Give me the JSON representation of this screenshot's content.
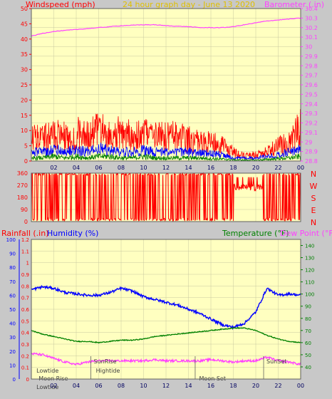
{
  "top_header": {
    "windspeed_label": "Windspeed (mph)",
    "date_title": "24 hour graph day - June 13 2020",
    "barometer_label": "Barometer (.in)"
  },
  "bottom_header": {
    "rainfall_label": "Rainfall (.in)",
    "humidity_label": "Humidity (%)",
    "temperature_label": "Temperature (°F)",
    "dewpoint_label": "Dew Point (°F)"
  },
  "colors": {
    "panel_bg": "#ffffc0",
    "frame_bg": "#c8c8c8",
    "red": "#ff0000",
    "magenta": "#ff40ff",
    "blue": "#0000ff",
    "green": "#008000",
    "gold": "#e0c000"
  },
  "time_ticks": [
    "02",
    "04",
    "06",
    "08",
    "10",
    "12",
    "14",
    "16",
    "18",
    "20",
    "22",
    "00"
  ],
  "chart_data": [
    {
      "type": "line",
      "name": "wind-barometer",
      "x": [
        0,
        1,
        2,
        3,
        4,
        5,
        6,
        7,
        8,
        9,
        10,
        11,
        12,
        13,
        14,
        15,
        16,
        17,
        18,
        19,
        20,
        21,
        22,
        23,
        24
      ],
      "series": [
        {
          "color": "#ff0000",
          "values": [
            8,
            7,
            9,
            8,
            9,
            8,
            10,
            9,
            9,
            8,
            9,
            8,
            8,
            8,
            7,
            6,
            6,
            5,
            3,
            2,
            2,
            3,
            5,
            6,
            11
          ]
        },
        {
          "color": "#0000ff",
          "values": [
            3,
            3,
            3.5,
            3,
            3.5,
            3,
            4,
            3.5,
            3,
            3,
            3.5,
            3,
            3,
            3,
            3,
            2.5,
            2.5,
            2,
            1,
            1,
            1,
            1.5,
            2,
            3,
            4
          ]
        },
        {
          "color": "#008000",
          "values": [
            1,
            1,
            1.5,
            1,
            1.5,
            1,
            1.5,
            1.5,
            1,
            1,
            1.5,
            1,
            1,
            1,
            1,
            1,
            0.8,
            0.6,
            0.4,
            0.3,
            0.3,
            0.5,
            0.8,
            1,
            1.5
          ]
        },
        {
          "color": "#ff40ff",
          "axis": "right",
          "values": [
            30.11,
            30.14,
            30.16,
            30.17,
            30.18,
            30.19,
            30.2,
            30.21,
            30.22,
            30.225,
            30.23,
            30.23,
            30.22,
            30.215,
            30.21,
            30.2,
            30.2,
            30.2,
            30.21,
            30.23,
            30.25,
            30.27,
            30.28,
            30.29,
            30.3
          ]
        }
      ],
      "left_axis": {
        "ticks": [
          0,
          5,
          10,
          15,
          20,
          25,
          30,
          35,
          40,
          45,
          50
        ],
        "ylim": [
          0,
          50
        ]
      },
      "right_axis": {
        "ticks": [
          "28.8",
          "28.9",
          "29",
          "29.1",
          "29.2",
          "29.3",
          "29.4",
          "29.5",
          "29.6",
          "29.7",
          "29.8",
          "29.9",
          "30",
          "30.1",
          "30.2",
          "30.3",
          "30.4"
        ],
        "ylim": [
          28.8,
          30.4
        ]
      },
      "xlim": [
        0,
        24
      ]
    },
    {
      "type": "line",
      "name": "wind-direction",
      "left_axis": {
        "ticks": [
          "0",
          "90",
          "180",
          "270",
          "360"
        ],
        "ylim": [
          0,
          360
        ]
      },
      "right_axis": {
        "ticks": [
          "N",
          "W",
          "S",
          "E",
          "N"
        ]
      },
      "xlim": [
        0,
        24
      ]
    },
    {
      "type": "line",
      "name": "rain-humidity-temp",
      "x": [
        0,
        1,
        2,
        3,
        4,
        5,
        6,
        7,
        8,
        9,
        10,
        11,
        12,
        13,
        14,
        15,
        16,
        17,
        18,
        19,
        20,
        21,
        22,
        23,
        24
      ],
      "series": [
        {
          "color": "#0000ff",
          "axis": "humidity",
          "values": [
            64,
            66,
            65,
            62,
            61,
            60,
            60,
            62,
            65,
            63,
            59,
            57,
            55,
            53,
            50,
            47,
            43,
            39,
            37,
            40,
            48,
            65,
            60,
            61,
            60
          ]
        },
        {
          "color": "#008000",
          "axis": "temperature",
          "values": [
            70,
            67,
            65,
            63,
            61,
            61,
            60,
            61,
            62,
            62,
            63,
            65,
            66,
            67,
            68,
            69,
            70,
            71,
            72,
            72,
            70,
            66,
            63,
            61,
            60
          ]
        },
        {
          "color": "#ff40ff",
          "axis": "temperature",
          "values": [
            51,
            50,
            47,
            44,
            42,
            44,
            45,
            45,
            45,
            45,
            45,
            46,
            45,
            45,
            45,
            45,
            46,
            45,
            44,
            45,
            45,
            48,
            45,
            44,
            42
          ]
        }
      ],
      "rain_axis": {
        "ticks": [
          "0",
          "0.1",
          "0.2",
          "0.3",
          "0.4",
          "0.5",
          "0.6",
          "0.7",
          "0.8",
          "0.9",
          "1",
          "1.1",
          "1.2"
        ],
        "ylim": [
          0,
          1.2
        ]
      },
      "humidity_axis": {
        "ticks": [
          0,
          10,
          20,
          30,
          40,
          50,
          60,
          70,
          80,
          90,
          100
        ],
        "ylim": [
          0,
          100
        ]
      },
      "temp_axis": {
        "ticks": [
          40,
          50,
          60,
          70,
          80,
          90,
          100,
          110,
          120,
          130,
          140
        ],
        "ylim": [
          30,
          145
        ]
      },
      "xlim": [
        0,
        24
      ]
    }
  ],
  "astro_events": [
    {
      "label": "Lowtide",
      "hour": 0.2,
      "row": 0
    },
    {
      "label": "SunRise",
      "hour": 5.3,
      "row": 1
    },
    {
      "label": "Hightide",
      "hour": 5.5,
      "row": 0
    },
    {
      "label": "Moon Rise",
      "hour": 0.4,
      "row": 2
    },
    {
      "label": "Moon Set",
      "hour": 14.7,
      "row": 2
    },
    {
      "label": "SunSet",
      "hour": 20.7,
      "row": 1
    },
    {
      "label": "Lowtide",
      "hour": 0.2,
      "row": 3
    }
  ],
  "astro_markers": [
    5.3,
    14.6,
    20.7
  ]
}
